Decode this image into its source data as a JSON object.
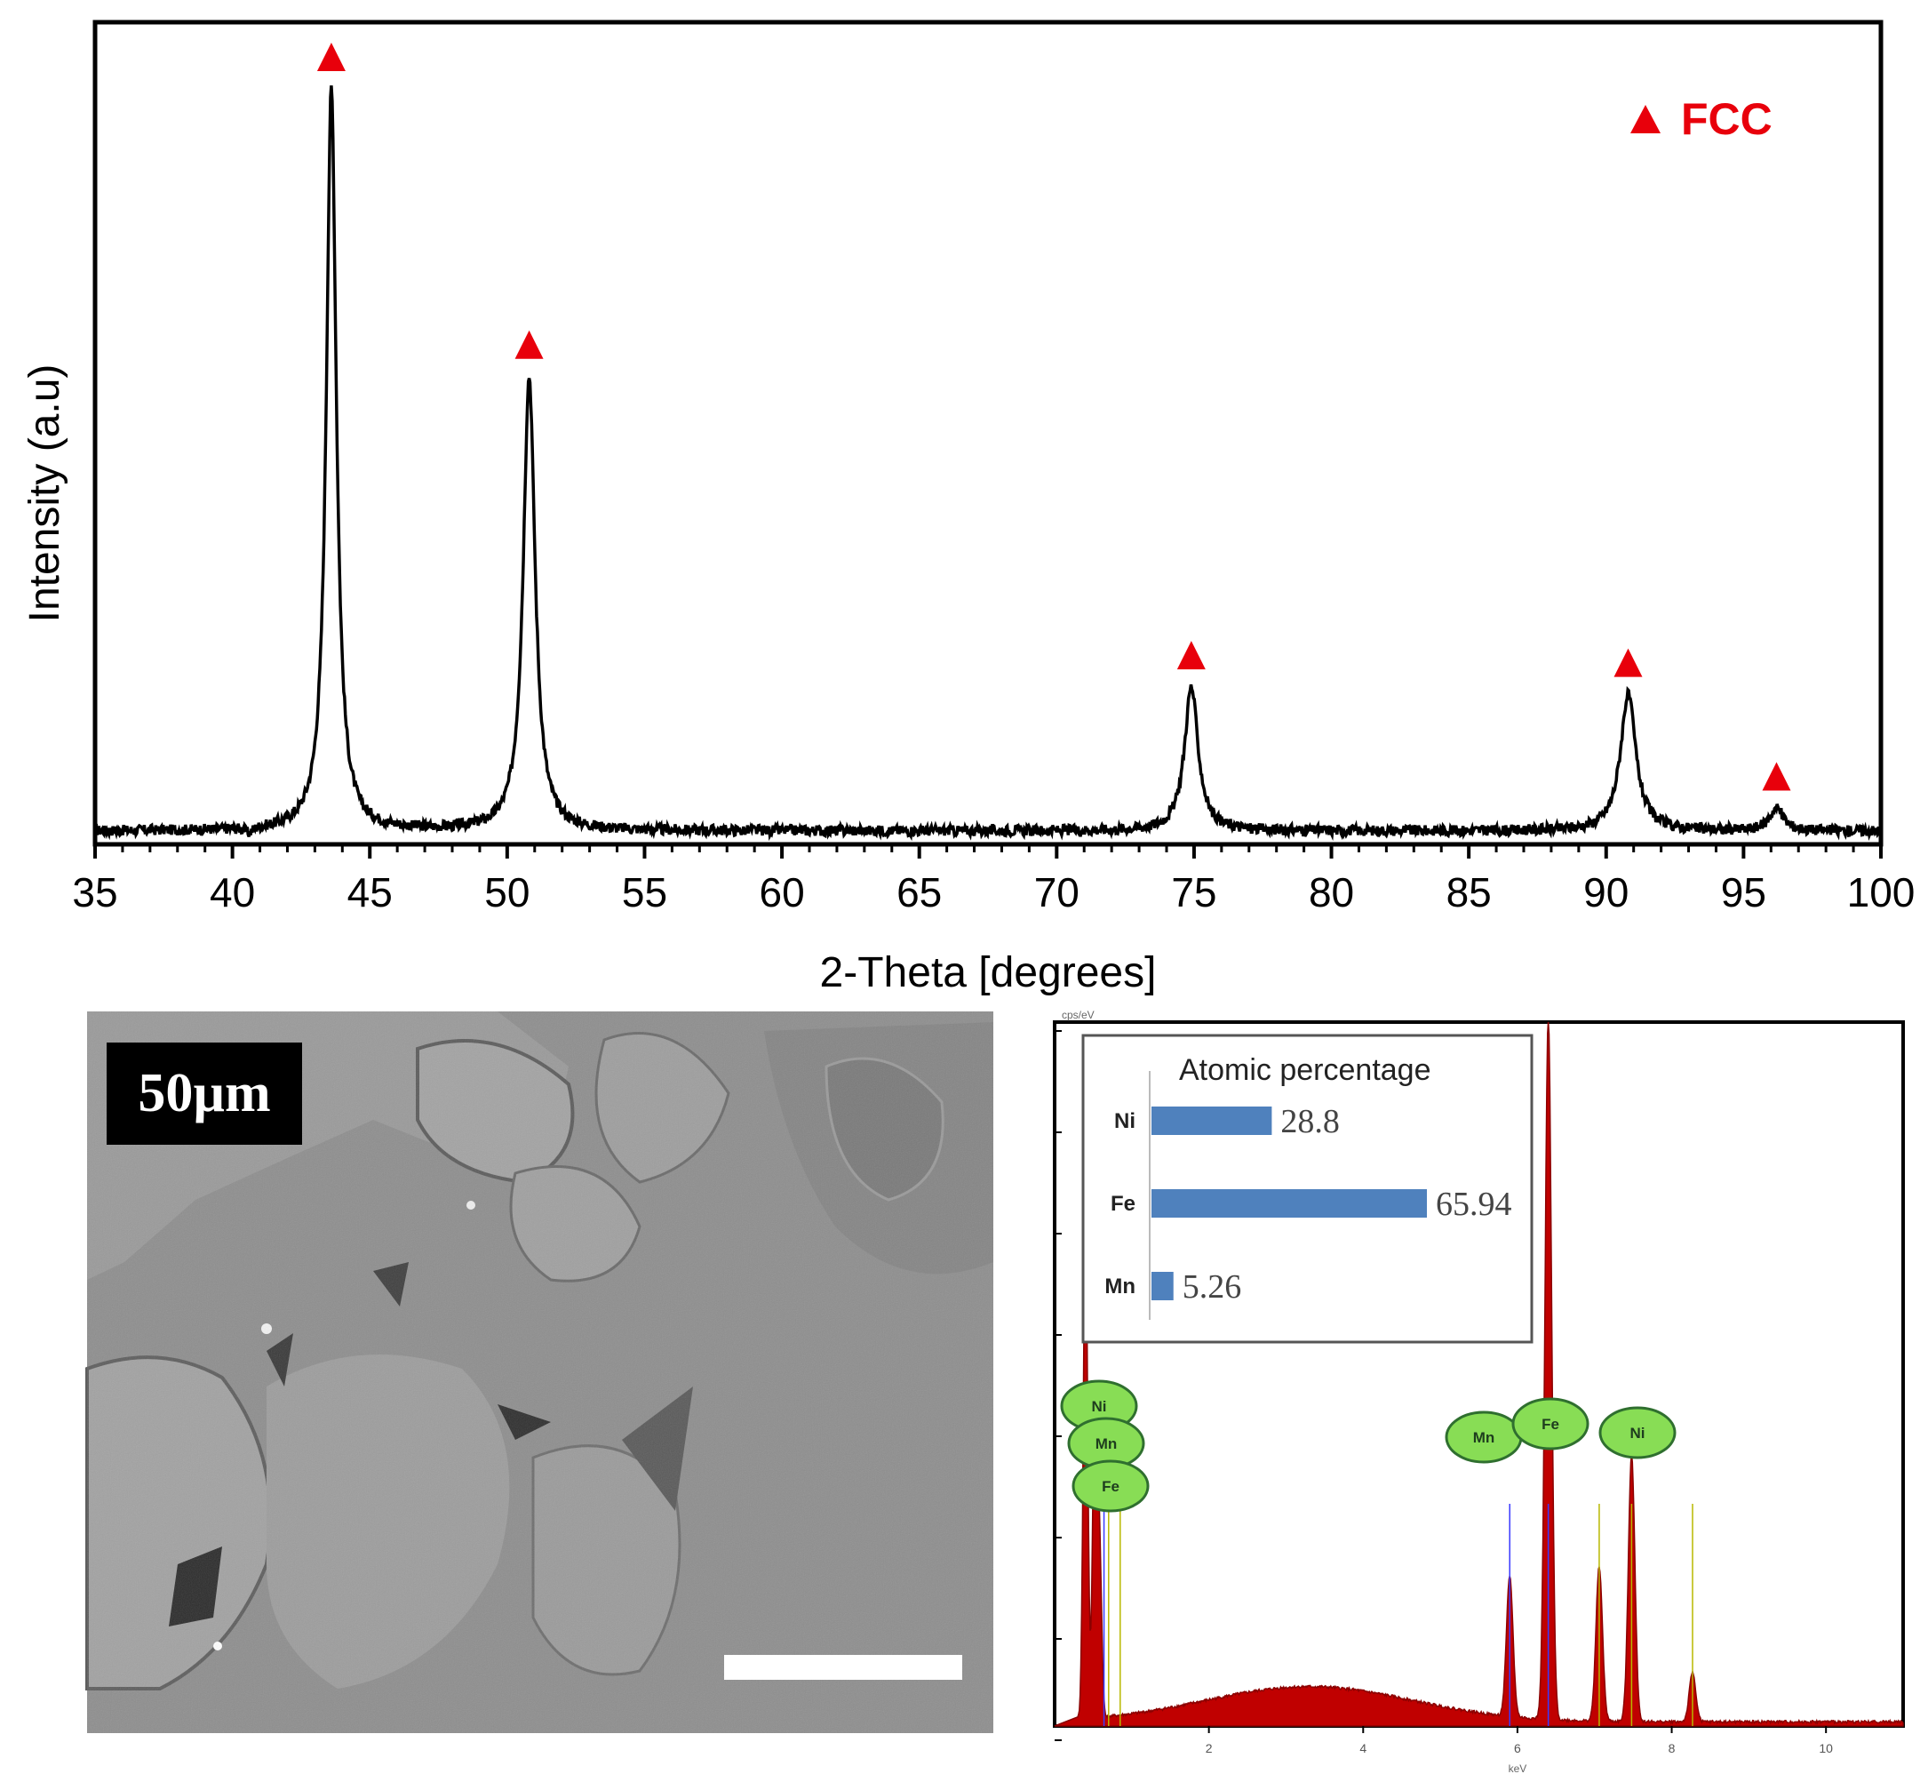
{
  "xrd": {
    "chart_data": {
      "type": "line",
      "xlabel": "2-Theta [degrees]",
      "ylabel": "Intensity (a.u)",
      "xlim": [
        35,
        100
      ],
      "x_ticks": [
        "35",
        "40",
        "45",
        "50",
        "55",
        "60",
        "65",
        "70",
        "75",
        "80",
        "85",
        "90",
        "95",
        "100"
      ],
      "legend": {
        "marker": "▲",
        "label": "FCC",
        "color": "#e8000b",
        "position": "top-right"
      },
      "series": [
        {
          "baseline": 0.02,
          "peaks": [
            {
              "x": 43.6,
              "height": 1.0,
              "width": 0.22,
              "phase": "FCC"
            },
            {
              "x": 50.8,
              "height": 0.62,
              "width": 0.26,
              "phase": "FCC"
            },
            {
              "x": 74.9,
              "height": 0.21,
              "width": 0.3,
              "phase": "FCC"
            },
            {
              "x": 90.8,
              "height": 0.2,
              "width": 0.34,
              "phase": "FCC"
            },
            {
              "x": 96.2,
              "height": 0.05,
              "width": 0.3,
              "phase": "FCC"
            },
            {
              "x": 40.6,
              "height": 0.012,
              "width": 0.15
            }
          ]
        }
      ]
    }
  },
  "sem": {
    "scale_label": "50µm"
  },
  "eds": {
    "chart_data": [
      {
        "type": "area",
        "xlabel": "keV",
        "ylabel": "cps/eV",
        "xlim": [
          0,
          11
        ],
        "x_ticks": [
          "2",
          "4",
          "6",
          "8",
          "10"
        ],
        "color": "#c00000",
        "series": [
          {
            "name": "spectrum",
            "bremsstrahlung_max": 0.05,
            "peaks": [
              {
                "x": 0.4,
                "height": 0.72
              },
              {
                "x": 0.52,
                "height": 0.45
              },
              {
                "x": 0.58,
                "height": 0.25
              },
              {
                "x": 5.9,
                "height": 0.2
              },
              {
                "x": 6.4,
                "height": 1.0
              },
              {
                "x": 7.06,
                "height": 0.22
              },
              {
                "x": 7.48,
                "height": 0.38
              },
              {
                "x": 8.27,
                "height": 0.07
              }
            ]
          }
        ],
        "element_labels": [
          {
            "name": "Ni",
            "x": 0.85
          },
          {
            "name": "Mn",
            "x": 0.64
          },
          {
            "name": "Fe",
            "x": 0.7
          },
          {
            "name": "Mn",
            "x": 5.9
          },
          {
            "name": "Fe",
            "x": 6.4
          },
          {
            "name": "Ni",
            "x": 7.48
          }
        ]
      },
      {
        "type": "bar",
        "title": "Atomic percentage",
        "categories": [
          "Ni",
          "Fe",
          "Mn"
        ],
        "values": [
          28.8,
          65.94,
          5.26
        ],
        "value_labels": [
          "28.8",
          "65.94",
          "5.26"
        ],
        "color": "#4f81bd"
      }
    ]
  }
}
